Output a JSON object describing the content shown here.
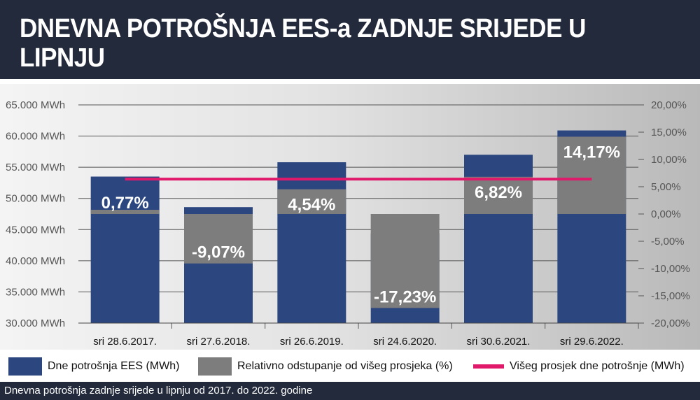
{
  "title": "DNEVNA POTROŠNJA EES-a ZADNJE SRIJEDE U LIPNJU",
  "footer": "Dnevna potrošnja zadnje srijede u lipnju od 2017. do 2022. godine",
  "colors": {
    "header_bg": "#232a3c",
    "consumption": "#2c4680",
    "deviation": "#7d7d7d",
    "average": "#e0196b"
  },
  "chart_data": {
    "type": "bar",
    "categories": [
      "sri 28.6.2017.",
      "sri 27.6.2018.",
      "sri 26.6.2019.",
      "sri 24.6.2020.",
      "sri 30.6.2021.",
      "sri 29.6.2022."
    ],
    "series": [
      {
        "name": "Dne potrošnja EES (MWh)",
        "axis": "left",
        "type": "bar",
        "values": [
          53500,
          48600,
          55800,
          44400,
          57000,
          60900
        ]
      },
      {
        "name": "Relativno odstupanje od višeg prosjeka (%)",
        "axis": "right",
        "type": "bar",
        "values": [
          0.77,
          -9.07,
          4.54,
          -17.23,
          6.82,
          14.17
        ],
        "labels": [
          "0,77%",
          "-9,07%",
          "4,54%",
          "-17,23%",
          "6,82%",
          "14,17%"
        ]
      },
      {
        "name": "Višeg prosjek dne potrošnje (MWh)",
        "axis": "left",
        "type": "line",
        "values": [
          53100,
          53100,
          53100,
          53100,
          53100,
          53100
        ]
      }
    ],
    "y_left": {
      "min": 30000,
      "max": 65000,
      "step": 5000,
      "ticks": [
        "30.000 MWh",
        "35.000 MWh",
        "40.000 MWh",
        "45.000 MWh",
        "50.000 MWh",
        "55.000 MWh",
        "60.000 MWh",
        "65.000 MWh"
      ]
    },
    "y_right": {
      "min": -20,
      "max": 20,
      "step": 5,
      "ticks": [
        "-20,00%",
        "-15,00%",
        "-10,00%",
        "-5,00%",
        "0,00%",
        "5,00%",
        "10,00%",
        "15,00%",
        "20,00%"
      ]
    },
    "grid": true,
    "legend_position": "bottom"
  }
}
